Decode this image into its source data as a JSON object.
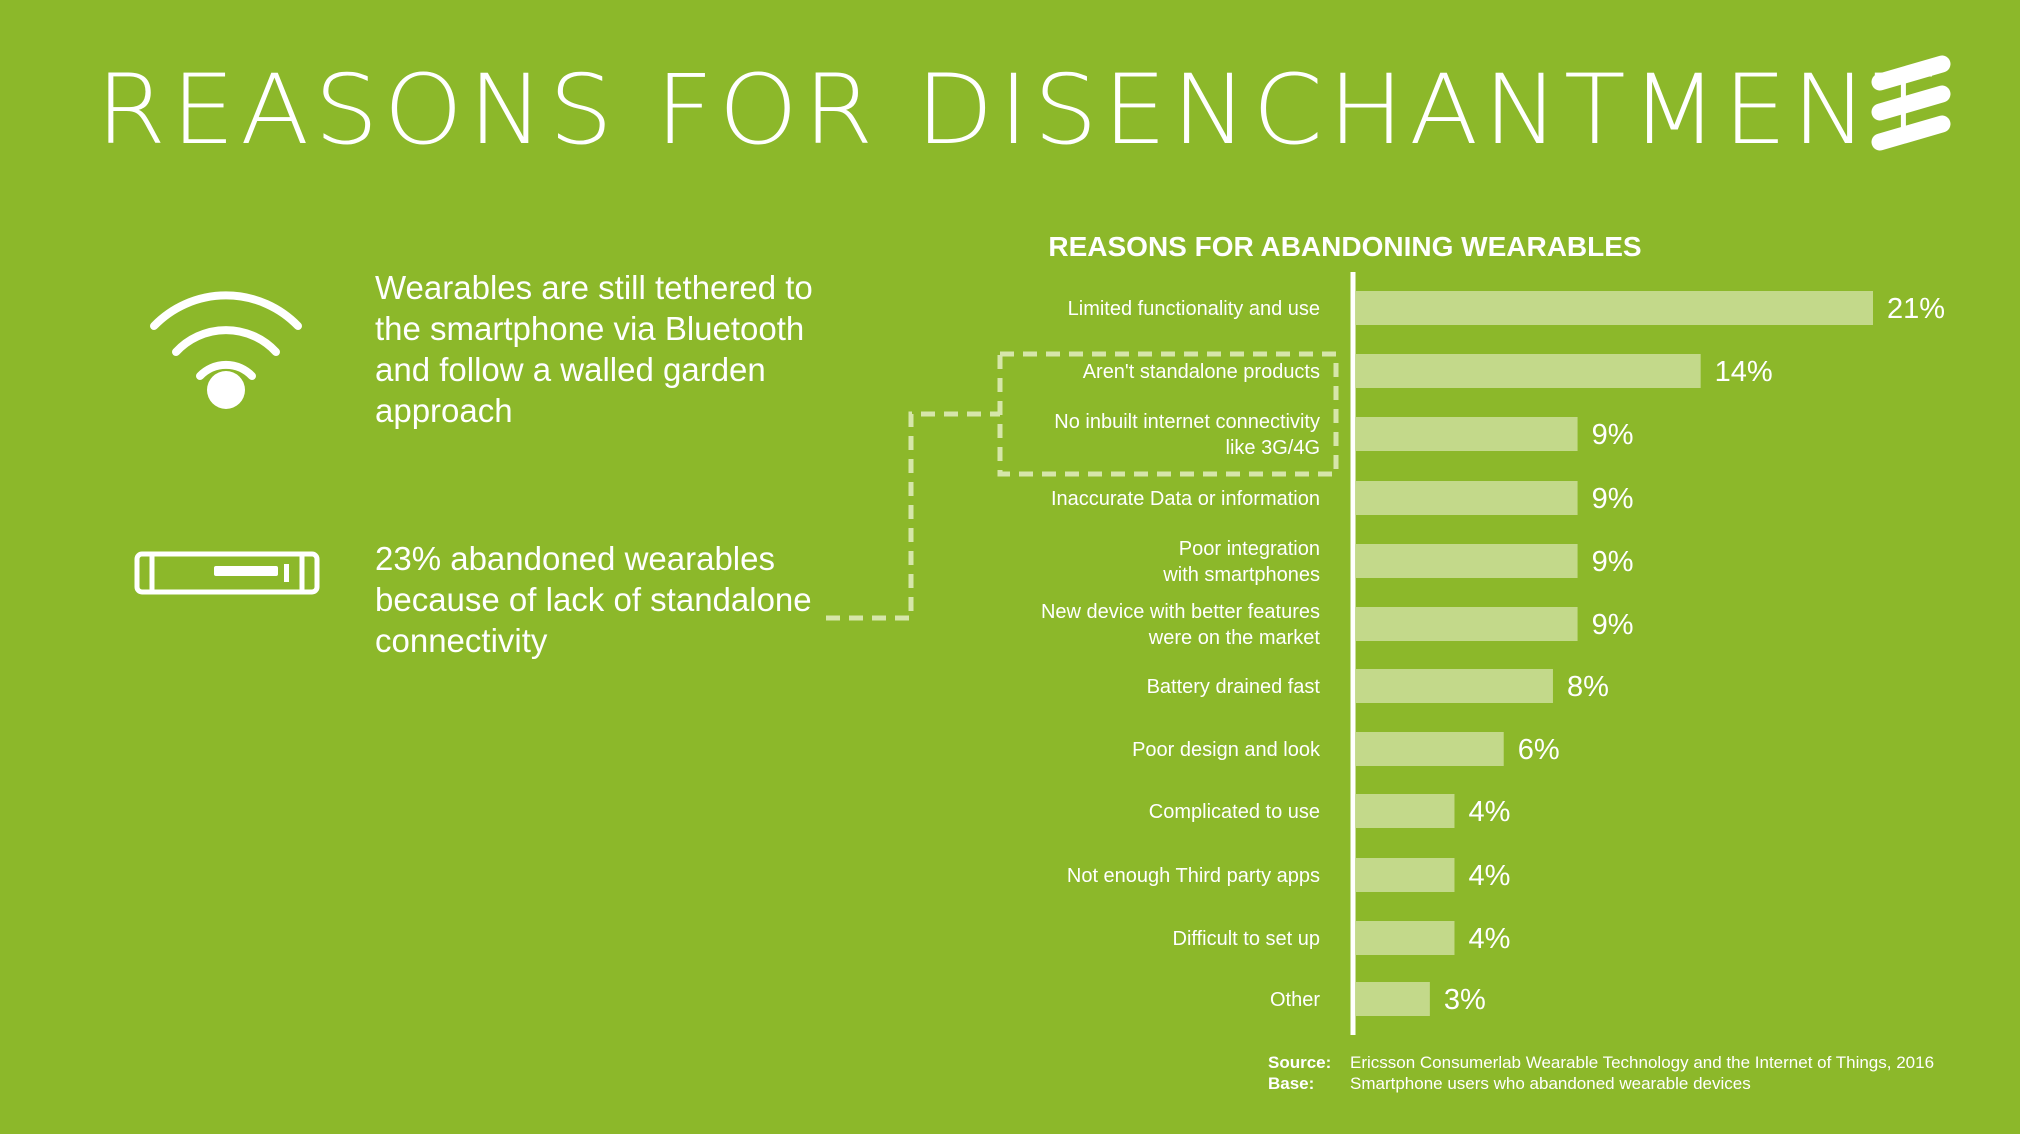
{
  "header": {
    "title": "REASONS FOR DISENCHANTMENT"
  },
  "bullets": [
    {
      "icon": "wifi-icon",
      "text": "Wearables are still tethered to the smartphone via Bluetooth and follow a walled garden approach"
    },
    {
      "icon": "device-icon",
      "text": "23% abandoned wearables because of lack of standalone connectivity"
    }
  ],
  "logo": {
    "icon": "ericsson-logo-icon"
  },
  "colors": {
    "background": "#8cb82a",
    "bar": "#c3d98a",
    "text": "#ffffff",
    "dashed": "#d6e6aa"
  },
  "chart_data": {
    "type": "bar",
    "orientation": "horizontal",
    "title": "REASONS FOR ABANDONING WEARABLES",
    "xlabel": "",
    "ylabel": "",
    "unit": "%",
    "xlim": [
      0,
      21
    ],
    "grid": false,
    "legend": "none",
    "categories": [
      [
        "Limited functionality and use"
      ],
      [
        "Aren't standalone products"
      ],
      [
        "No inbuilt internet connectivity",
        "like 3G/4G"
      ],
      [
        "Inaccurate Data or information"
      ],
      [
        "Poor integration",
        "with smartphones"
      ],
      [
        "New device with better features",
        "were on the market"
      ],
      [
        "Battery drained fast"
      ],
      [
        "Poor design and look"
      ],
      [
        "Complicated to use"
      ],
      [
        "Not enough Third party apps"
      ],
      [
        "Difficult to set up"
      ],
      [
        "Other"
      ]
    ],
    "values": [
      21,
      14,
      9,
      9,
      9,
      9,
      8,
      6,
      4,
      4,
      4,
      3
    ],
    "value_labels": [
      "21%",
      "14%",
      "9%",
      "9%",
      "9%",
      "9%",
      "8%",
      "6%",
      "4%",
      "4%",
      "4%",
      "3%"
    ],
    "highlighted_group": [
      1,
      2
    ]
  },
  "source": {
    "source_label": "Source:",
    "source_text": "Ericsson Consumerlab Wearable Technology and the Internet of Things, 2016",
    "base_label": "Base:",
    "base_text": "Smartphone users who abandoned wearable devices"
  }
}
